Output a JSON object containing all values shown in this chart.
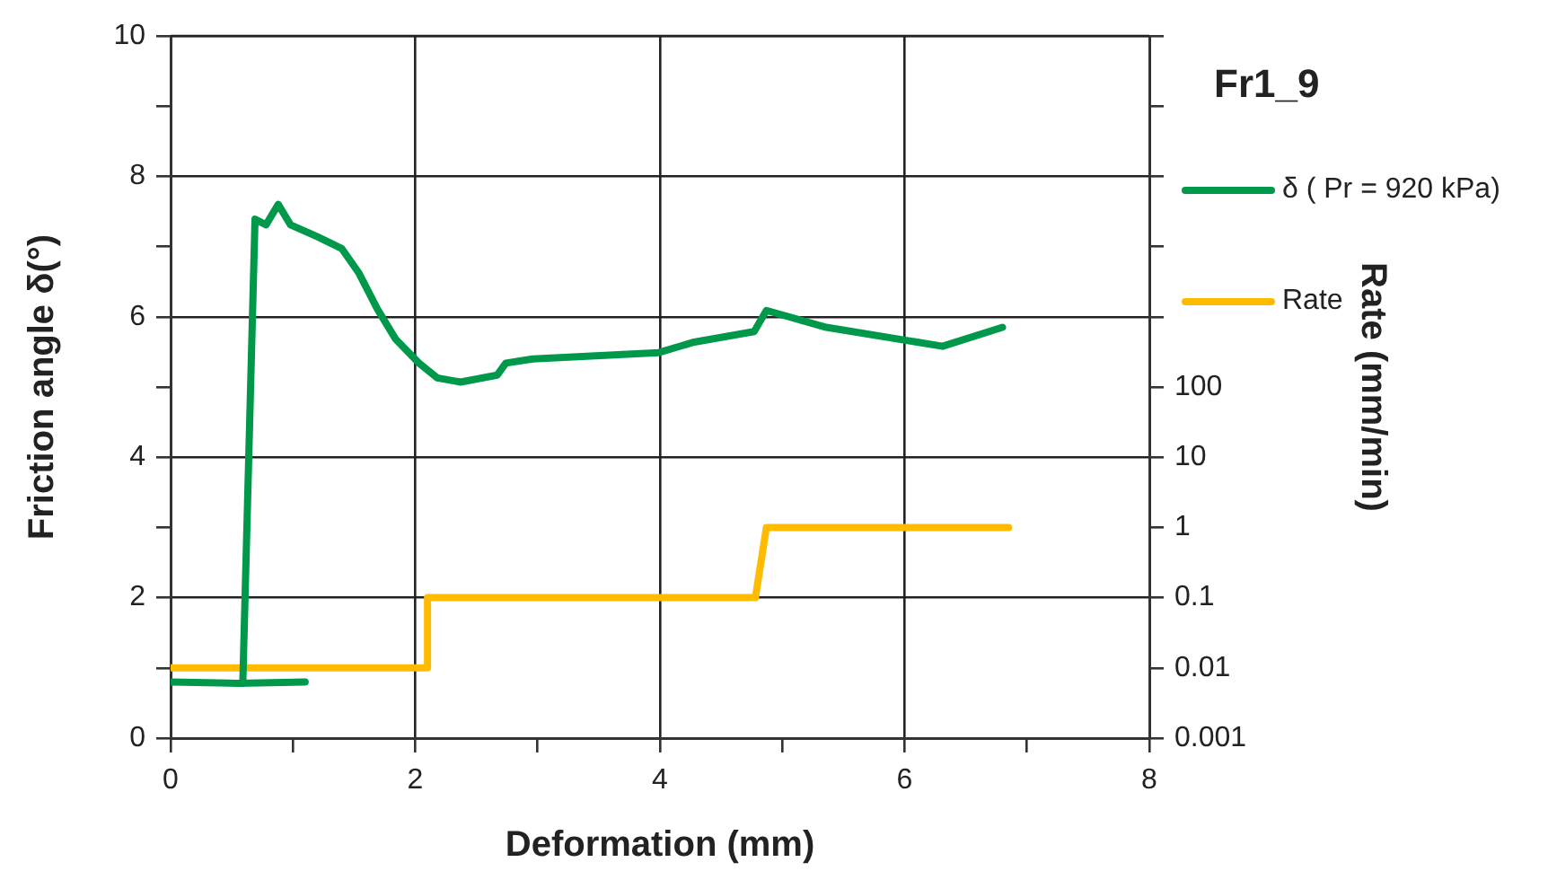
{
  "chart_data": {
    "type": "line",
    "title": "Fr1_9",
    "xlabel": "Deformation (mm)",
    "ylabel": "Friction angle δ(°)",
    "y2label": "Rate (mm/min)",
    "xlim": [
      0,
      8
    ],
    "xticks": [
      0,
      {
        "value": 1,
        "label": null
      },
      2,
      {
        "value": 3,
        "label": null
      },
      4,
      {
        "value": 5,
        "label": null
      },
      6,
      {
        "value": 7,
        "label": null
      },
      8
    ],
    "ylim": [
      0,
      10
    ],
    "yticks": [
      0,
      {
        "value": 1,
        "label": null
      },
      2,
      {
        "value": 3,
        "label": null
      },
      4,
      {
        "value": 5,
        "label": null
      },
      6,
      {
        "value": 7,
        "label": null
      },
      8,
      {
        "value": 9,
        "label": null
      },
      10
    ],
    "y2lim": [
      0.001,
      10000000
    ],
    "y2ticks": [
      0.001,
      0.01,
      0.1,
      1,
      10,
      100,
      {
        "value": 1000,
        "label": null
      },
      {
        "value": 10000,
        "label": null
      },
      {
        "value": 100000,
        "label": null
      },
      {
        "value": 1000000,
        "label": null
      },
      {
        "value": 10000000,
        "label": null
      }
    ],
    "log": "y2",
    "grid": true,
    "legend": "right",
    "marker": "none",
    "line_style": "solid",
    "series": [
      {
        "name": "δ ( Pr = 920 kPa)",
        "color": "#00994c",
        "x": [
          0,
          0.55,
          0.59,
          0.69,
          0.78,
          0.88,
          0.98,
          1.2,
          1.4,
          1.54,
          1.69,
          1.84,
          2.03,
          2.18,
          2.37,
          2.67,
          2.74,
          2.96,
          3.99,
          4.28,
          4.77,
          4.87,
          5.36,
          6.31,
          6.8
        ],
        "values": [
          0.8,
          0.78,
          0.78,
          7.39,
          7.31,
          7.6,
          7.31,
          7.14,
          6.97,
          6.62,
          6.11,
          5.68,
          5.34,
          5.13,
          5.07,
          5.17,
          5.34,
          5.4,
          5.49,
          5.64,
          5.79,
          6.09,
          5.85,
          5.58,
          5.85
        ]
      },
      {
        "color": "#00994c",
        "x": [
          0.55,
          1.1
        ],
        "values": [
          0.78,
          0.8
        ]
      },
      {
        "name": "Rate",
        "color": "#ffbb00",
        "axis": "y2",
        "x": [
          0,
          2.1,
          2.1,
          4.78,
          4.87,
          6.85
        ],
        "values": [
          0.01,
          0.01,
          0.1,
          0.1,
          1,
          1
        ]
      }
    ]
  }
}
